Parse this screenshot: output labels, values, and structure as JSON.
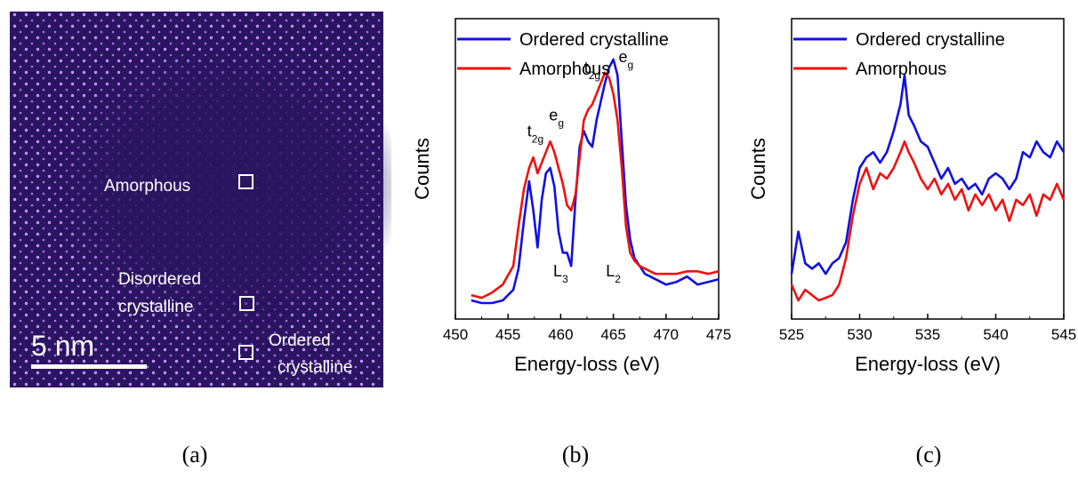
{
  "figure": {
    "panel_a": {
      "labels": {
        "amorphous": "Amorphous",
        "disordered_line1": "Disordered",
        "disordered_line2": "crystalline",
        "ordered_line1": "Ordered",
        "ordered_line2": "crystalline"
      },
      "scale_bar": "5 nm"
    },
    "captions": [
      "(a)",
      "(b)",
      "(c)"
    ]
  },
  "colors": {
    "ordered": "#1010e0",
    "amorphous": "#ee1111",
    "image_bg": "#2a1560",
    "atom": "#c88cff"
  },
  "chart_data": [
    {
      "type": "line",
      "xlabel": "Energy-loss (eV)",
      "ylabel": "Counts",
      "xlim": [
        450,
        475
      ],
      "xticks": [
        450,
        455,
        460,
        465,
        470,
        475
      ],
      "legend": "top-left",
      "series": [
        {
          "name": "Ordered crystalline",
          "color": "#1010e0",
          "x": [
            451.5,
            452.5,
            453.5,
            454.5,
            455.5,
            456,
            456.5,
            457,
            457.4,
            457.8,
            458.2,
            458.6,
            459,
            459.4,
            459.8,
            460.2,
            460.6,
            461,
            461.4,
            461.8,
            462.2,
            462.6,
            463,
            463.4,
            463.8,
            464.2,
            464.6,
            465,
            465.4,
            465.8,
            466.2,
            466.6,
            467,
            467.5,
            468,
            469,
            470,
            471,
            472,
            473,
            474,
            475
          ],
          "y": [
            0.02,
            0.01,
            0.01,
            0.02,
            0.06,
            0.14,
            0.32,
            0.47,
            0.36,
            0.22,
            0.4,
            0.5,
            0.52,
            0.45,
            0.28,
            0.2,
            0.2,
            0.15,
            0.4,
            0.6,
            0.66,
            0.62,
            0.6,
            0.7,
            0.77,
            0.84,
            0.9,
            0.93,
            0.87,
            0.62,
            0.38,
            0.25,
            0.18,
            0.15,
            0.12,
            0.1,
            0.08,
            0.09,
            0.11,
            0.08,
            0.09,
            0.1
          ]
        },
        {
          "name": "Amorphous",
          "color": "#ee1111",
          "x": [
            451.5,
            452.5,
            453.5,
            454.5,
            455.5,
            456,
            456.5,
            457,
            457.4,
            457.8,
            458.2,
            458.6,
            459,
            459.4,
            459.8,
            460.2,
            460.6,
            461,
            461.4,
            461.8,
            462.2,
            462.6,
            463,
            463.4,
            463.8,
            464.2,
            464.6,
            465,
            465.4,
            465.8,
            466.2,
            466.6,
            467,
            467.5,
            468,
            469,
            470,
            471,
            472,
            473,
            474,
            475
          ],
          "y": [
            0.04,
            0.03,
            0.05,
            0.08,
            0.15,
            0.3,
            0.44,
            0.52,
            0.56,
            0.5,
            0.54,
            0.58,
            0.62,
            0.58,
            0.52,
            0.46,
            0.38,
            0.36,
            0.42,
            0.56,
            0.7,
            0.74,
            0.76,
            0.8,
            0.84,
            0.88,
            0.86,
            0.8,
            0.7,
            0.52,
            0.3,
            0.2,
            0.17,
            0.15,
            0.14,
            0.12,
            0.12,
            0.12,
            0.13,
            0.13,
            0.12,
            0.13
          ]
        }
      ],
      "annotations": [
        {
          "text": "t",
          "sub": "2g",
          "x": 457.6,
          "y": 0.64
        },
        {
          "text": "e",
          "sub": "g",
          "x": 459.6,
          "y": 0.7
        },
        {
          "text": "t",
          "sub": "2g",
          "x": 463.0,
          "y": 0.88
        },
        {
          "text": "e",
          "sub": "g",
          "x": 466.2,
          "y": 0.92
        },
        {
          "text": "L",
          "sub": "3",
          "x": 460.0,
          "y": 0.11
        },
        {
          "text": "L",
          "sub": "2",
          "x": 465.0,
          "y": 0.11
        }
      ]
    },
    {
      "type": "line",
      "xlabel": "Energy-loss (eV)",
      "ylabel": "Counts",
      "xlim": [
        525,
        545
      ],
      "xticks": [
        525,
        530,
        535,
        540,
        545
      ],
      "legend": "top-left",
      "series": [
        {
          "name": "Ordered crystalline",
          "color": "#1010e0",
          "x": [
            525,
            525.5,
            526,
            526.5,
            527,
            527.5,
            528,
            528.5,
            529,
            529.5,
            530,
            530.5,
            531,
            531.5,
            532,
            532.5,
            533,
            533.3,
            533.6,
            534,
            534.5,
            535,
            535.5,
            536,
            536.5,
            537,
            537.5,
            538,
            538.5,
            539,
            539.5,
            540,
            540.5,
            541,
            541.5,
            542,
            542.5,
            543,
            543.5,
            544,
            544.5,
            545
          ],
          "y": [
            0.12,
            0.28,
            0.16,
            0.14,
            0.16,
            0.12,
            0.16,
            0.18,
            0.24,
            0.4,
            0.52,
            0.56,
            0.58,
            0.54,
            0.58,
            0.66,
            0.76,
            0.87,
            0.72,
            0.68,
            0.62,
            0.6,
            0.54,
            0.48,
            0.52,
            0.46,
            0.48,
            0.44,
            0.46,
            0.42,
            0.48,
            0.5,
            0.48,
            0.44,
            0.48,
            0.58,
            0.56,
            0.62,
            0.58,
            0.56,
            0.62,
            0.58
          ]
        },
        {
          "name": "Amorphous",
          "color": "#ee1111",
          "x": [
            525,
            525.5,
            526,
            526.5,
            527,
            527.5,
            528,
            528.5,
            529,
            529.5,
            530,
            530.5,
            531,
            531.5,
            532,
            532.5,
            533,
            533.3,
            533.6,
            534,
            534.5,
            535,
            535.5,
            536,
            536.5,
            537,
            537.5,
            538,
            538.5,
            539,
            539.5,
            540,
            540.5,
            541,
            541.5,
            542,
            542.5,
            543,
            543.5,
            544,
            544.5,
            545
          ],
          "y": [
            0.08,
            0.02,
            0.06,
            0.04,
            0.02,
            0.03,
            0.04,
            0.08,
            0.18,
            0.34,
            0.46,
            0.52,
            0.44,
            0.5,
            0.48,
            0.52,
            0.58,
            0.62,
            0.58,
            0.54,
            0.48,
            0.44,
            0.48,
            0.42,
            0.46,
            0.4,
            0.44,
            0.36,
            0.42,
            0.38,
            0.42,
            0.36,
            0.4,
            0.32,
            0.4,
            0.38,
            0.42,
            0.34,
            0.42,
            0.4,
            0.46,
            0.4
          ]
        }
      ]
    }
  ]
}
